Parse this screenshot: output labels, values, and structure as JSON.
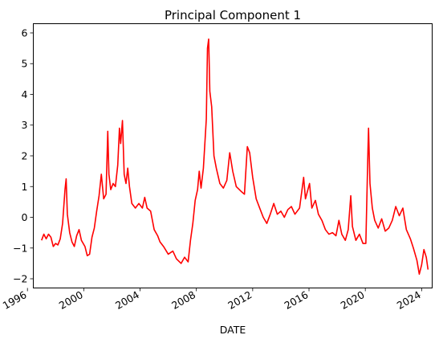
{
  "chart_data": {
    "type": "line",
    "title": "Principal Component 1",
    "xlabel": "DATE",
    "ylabel": "",
    "xlim": [
      "1996-06-01",
      "2024-10-01"
    ],
    "ylim": [
      -2.3,
      6.3
    ],
    "x_ticks": [
      {
        "label": "1996",
        "date": "1996-01-01"
      },
      {
        "label": "2000",
        "date": "2000-01-01"
      },
      {
        "label": "2004",
        "date": "2004-01-01"
      },
      {
        "label": "2008",
        "date": "2008-01-01"
      },
      {
        "label": "2012",
        "date": "2012-01-01"
      },
      {
        "label": "2016",
        "date": "2016-01-01"
      },
      {
        "label": "2020",
        "date": "2020-01-01"
      },
      {
        "label": "2024",
        "date": "2024-01-01"
      }
    ],
    "y_ticks": [
      {
        "label": "−2",
        "value": -2
      },
      {
        "label": "−1",
        "value": -1
      },
      {
        "label": "0",
        "value": 0
      },
      {
        "label": "1",
        "value": 1
      },
      {
        "label": "2",
        "value": 2
      },
      {
        "label": "3",
        "value": 3
      },
      {
        "label": "4",
        "value": 4
      },
      {
        "label": "5",
        "value": 5
      },
      {
        "label": "6",
        "value": 6
      }
    ],
    "grid": false,
    "legend": "none",
    "series": [
      {
        "color": "#ff0000",
        "points": [
          [
            "1997-01-01",
            -0.75
          ],
          [
            "1997-03-01",
            -0.55
          ],
          [
            "1997-05-01",
            -0.7
          ],
          [
            "1997-07-01",
            -0.55
          ],
          [
            "1997-09-01",
            -0.65
          ],
          [
            "1997-11-01",
            -0.95
          ],
          [
            "1998-01-01",
            -0.85
          ],
          [
            "1998-03-01",
            -0.9
          ],
          [
            "1998-05-01",
            -0.7
          ],
          [
            "1998-07-01",
            -0.2
          ],
          [
            "1998-09-01",
            0.9
          ],
          [
            "1998-10-01",
            1.25
          ],
          [
            "1998-11-01",
            0.1
          ],
          [
            "1999-01-01",
            -0.5
          ],
          [
            "1999-03-01",
            -0.8
          ],
          [
            "1999-05-01",
            -0.95
          ],
          [
            "1999-07-01",
            -0.6
          ],
          [
            "1999-09-01",
            -0.4
          ],
          [
            "1999-11-01",
            -0.75
          ],
          [
            "2000-02-01",
            -0.95
          ],
          [
            "2000-04-01",
            -1.25
          ],
          [
            "2000-06-01",
            -1.2
          ],
          [
            "2000-08-01",
            -0.65
          ],
          [
            "2000-10-01",
            -0.35
          ],
          [
            "2000-12-01",
            0.2
          ],
          [
            "2001-02-01",
            0.7
          ],
          [
            "2001-04-01",
            1.4
          ],
          [
            "2001-06-01",
            0.6
          ],
          [
            "2001-08-01",
            0.75
          ],
          [
            "2001-09-15",
            2.8
          ],
          [
            "2001-10-15",
            1.4
          ],
          [
            "2001-12-01",
            0.9
          ],
          [
            "2002-02-01",
            1.1
          ],
          [
            "2002-04-01",
            1.0
          ],
          [
            "2002-06-01",
            1.7
          ],
          [
            "2002-07-15",
            2.9
          ],
          [
            "2002-08-15",
            2.4
          ],
          [
            "2002-10-01",
            3.15
          ],
          [
            "2002-11-15",
            1.4
          ],
          [
            "2003-01-01",
            1.1
          ],
          [
            "2003-02-15",
            1.6
          ],
          [
            "2003-04-01",
            1.0
          ],
          [
            "2003-06-01",
            0.45
          ],
          [
            "2003-09-01",
            0.3
          ],
          [
            "2003-12-01",
            0.45
          ],
          [
            "2004-03-01",
            0.3
          ],
          [
            "2004-05-01",
            0.65
          ],
          [
            "2004-07-01",
            0.3
          ],
          [
            "2004-10-01",
            0.2
          ],
          [
            "2005-01-01",
            -0.4
          ],
          [
            "2005-04-01",
            -0.6
          ],
          [
            "2005-06-01",
            -0.8
          ],
          [
            "2005-09-01",
            -0.95
          ],
          [
            "2006-01-01",
            -1.2
          ],
          [
            "2006-05-01",
            -1.1
          ],
          [
            "2006-08-01",
            -1.35
          ],
          [
            "2006-12-01",
            -1.5
          ],
          [
            "2007-03-01",
            -1.3
          ],
          [
            "2007-06-01",
            -1.45
          ],
          [
            "2007-08-01",
            -0.75
          ],
          [
            "2007-10-01",
            -0.2
          ],
          [
            "2007-12-01",
            0.55
          ],
          [
            "2008-02-01",
            0.9
          ],
          [
            "2008-03-15",
            1.5
          ],
          [
            "2008-05-01",
            0.95
          ],
          [
            "2008-07-01",
            1.6
          ],
          [
            "2008-09-15",
            3.2
          ],
          [
            "2008-10-15",
            5.5
          ],
          [
            "2008-11-15",
            5.8
          ],
          [
            "2008-12-15",
            4.1
          ],
          [
            "2009-02-01",
            3.6
          ],
          [
            "2009-04-01",
            2.0
          ],
          [
            "2009-06-01",
            1.6
          ],
          [
            "2009-09-01",
            1.1
          ],
          [
            "2009-12-01",
            0.95
          ],
          [
            "2010-03-01",
            1.2
          ],
          [
            "2010-05-15",
            2.1
          ],
          [
            "2010-08-01",
            1.5
          ],
          [
            "2010-11-01",
            1.0
          ],
          [
            "2011-03-01",
            0.85
          ],
          [
            "2011-06-01",
            0.75
          ],
          [
            "2011-08-15",
            2.3
          ],
          [
            "2011-10-15",
            2.1
          ],
          [
            "2012-01-01",
            1.3
          ],
          [
            "2012-04-01",
            0.6
          ],
          [
            "2012-07-01",
            0.3
          ],
          [
            "2012-10-01",
            0.0
          ],
          [
            "2013-01-01",
            -0.2
          ],
          [
            "2013-04-01",
            0.1
          ],
          [
            "2013-07-01",
            0.45
          ],
          [
            "2013-10-01",
            0.1
          ],
          [
            "2014-01-01",
            0.2
          ],
          [
            "2014-04-01",
            0.0
          ],
          [
            "2014-07-01",
            0.25
          ],
          [
            "2014-10-01",
            0.35
          ],
          [
            "2015-01-01",
            0.1
          ],
          [
            "2015-05-01",
            0.3
          ],
          [
            "2015-08-15",
            1.3
          ],
          [
            "2015-10-01",
            0.6
          ],
          [
            "2016-01-15",
            1.1
          ],
          [
            "2016-03-15",
            0.3
          ],
          [
            "2016-06-15",
            0.55
          ],
          [
            "2016-09-01",
            0.1
          ],
          [
            "2016-12-01",
            -0.1
          ],
          [
            "2017-03-01",
            -0.4
          ],
          [
            "2017-06-01",
            -0.55
          ],
          [
            "2017-09-01",
            -0.5
          ],
          [
            "2017-12-01",
            -0.6
          ],
          [
            "2018-02-15",
            -0.1
          ],
          [
            "2018-05-01",
            -0.55
          ],
          [
            "2018-08-01",
            -0.75
          ],
          [
            "2018-10-15",
            -0.4
          ],
          [
            "2018-12-20",
            0.7
          ],
          [
            "2019-02-01",
            -0.3
          ],
          [
            "2019-05-01",
            -0.75
          ],
          [
            "2019-08-01",
            -0.55
          ],
          [
            "2019-11-01",
            -0.85
          ],
          [
            "2020-01-15",
            -0.85
          ],
          [
            "2020-03-10",
            2.2
          ],
          [
            "2020-03-25",
            2.9
          ],
          [
            "2020-05-01",
            1.1
          ],
          [
            "2020-07-01",
            0.3
          ],
          [
            "2020-09-01",
            -0.1
          ],
          [
            "2020-12-01",
            -0.35
          ],
          [
            "2021-03-01",
            -0.05
          ],
          [
            "2021-06-01",
            -0.45
          ],
          [
            "2021-09-01",
            -0.35
          ],
          [
            "2021-12-01",
            -0.1
          ],
          [
            "2022-03-01",
            0.35
          ],
          [
            "2022-06-01",
            0.05
          ],
          [
            "2022-09-01",
            0.3
          ],
          [
            "2022-12-01",
            -0.4
          ],
          [
            "2023-03-15",
            -0.7
          ],
          [
            "2023-06-01",
            -1.0
          ],
          [
            "2023-09-01",
            -1.4
          ],
          [
            "2023-11-01",
            -1.85
          ],
          [
            "2024-01-01",
            -1.55
          ],
          [
            "2024-03-01",
            -1.05
          ],
          [
            "2024-05-01",
            -1.3
          ],
          [
            "2024-06-15",
            -1.7
          ]
        ]
      }
    ]
  }
}
